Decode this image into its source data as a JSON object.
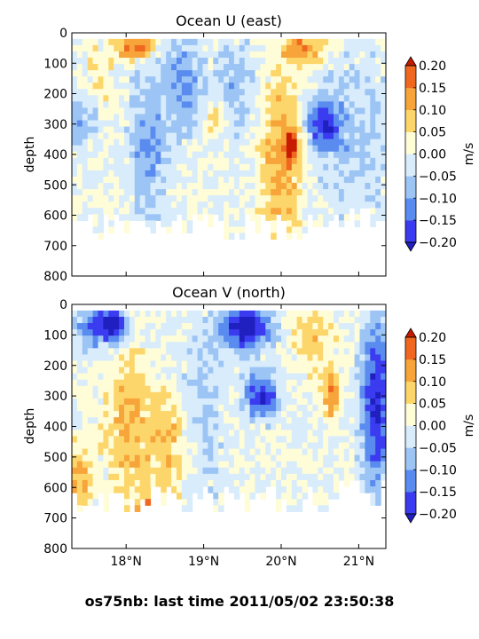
{
  "suptitle": "os75nb: last time 2011/05/02 23:50:38",
  "shared_x": {
    "ticks": [
      18,
      19,
      20,
      21
    ],
    "tick_labels": [
      "18°N",
      "19°N",
      "20°N",
      "21°N"
    ],
    "xlim": [
      17.3,
      21.35
    ]
  },
  "colorbar": {
    "label": "m/s",
    "ticks": [
      0.2,
      0.15,
      0.1,
      0.05,
      0.0,
      -0.05,
      -0.1,
      -0.15,
      -0.2
    ],
    "tick_labels": [
      "0.20",
      "0.15",
      "0.10",
      "0.05",
      "0.00",
      "−0.05",
      "−0.10",
      "−0.15",
      "−0.20"
    ],
    "levels": [
      -0.2,
      -0.15,
      -0.1,
      -0.05,
      0.0,
      0.05,
      0.1,
      0.15,
      0.2
    ],
    "colors": [
      "#3b3bf0",
      "#5a8cf0",
      "#9cc4f4",
      "#d8ecfc",
      "#fffcd8",
      "#fcd66a",
      "#f7a43a",
      "#f06820"
    ],
    "under_color": "#2020c0",
    "over_color": "#c81a00"
  },
  "chart_data": [
    {
      "type": "heatmap",
      "title": "Ocean U (east)",
      "ylabel": "depth",
      "ylim": [
        800,
        0
      ],
      "yticks": [
        0,
        100,
        200,
        300,
        400,
        500,
        600,
        700,
        800
      ],
      "xlim": [
        17.3,
        21.35
      ],
      "value_range": [
        -0.2,
        0.2
      ],
      "approx_features": [
        {
          "x": [
            17.4,
            17.75
          ],
          "depth": [
            50,
            300
          ],
          "value": 0.05
        },
        {
          "x": [
            17.3,
            17.6
          ],
          "depth": [
            200,
            350
          ],
          "value": -0.1
        },
        {
          "x": [
            17.9,
            18.1
          ],
          "depth": [
            30,
            80
          ],
          "value": 0.12
        },
        {
          "x": [
            18.1,
            18.3
          ],
          "depth": [
            30,
            60
          ],
          "value": 0.2
        },
        {
          "x": [
            18.1,
            18.5
          ],
          "depth": [
            100,
            620
          ],
          "value": -0.1
        },
        {
          "x": [
            18.6,
            18.9
          ],
          "depth": [
            50,
            300
          ],
          "value": -0.12
        },
        {
          "x": [
            19.1,
            19.2
          ],
          "depth": [
            250,
            320
          ],
          "value": 0.1
        },
        {
          "x": [
            19.2,
            19.6
          ],
          "depth": [
            50,
            300
          ],
          "value": -0.08
        },
        {
          "x": [
            19.8,
            20.2
          ],
          "depth": [
            150,
            700
          ],
          "value": 0.12
        },
        {
          "x": [
            20.1,
            20.15
          ],
          "depth": [
            350,
            400
          ],
          "value": 0.22
        },
        {
          "x": [
            20.1,
            20.5
          ],
          "depth": [
            30,
            80
          ],
          "value": 0.15
        },
        {
          "x": [
            20.4,
            20.7
          ],
          "depth": [
            250,
            350
          ],
          "value": -0.2
        },
        {
          "x": [
            20.5,
            21.35
          ],
          "depth": [
            100,
            600
          ],
          "value": -0.06
        }
      ]
    },
    {
      "type": "heatmap",
      "title": "Ocean V (north)",
      "ylabel": "depth",
      "ylim": [
        800,
        0
      ],
      "yticks": [
        0,
        100,
        200,
        300,
        400,
        500,
        600,
        700,
        800
      ],
      "xlim": [
        17.3,
        21.35
      ],
      "value_range": [
        -0.2,
        0.2
      ],
      "approx_features": [
        {
          "x": [
            17.4,
            17.8
          ],
          "depth": [
            30,
            120
          ],
          "value": -0.15
        },
        {
          "x": [
            17.75,
            17.95
          ],
          "depth": [
            30,
            100
          ],
          "value": -0.22
        },
        {
          "x": [
            17.3,
            17.5
          ],
          "depth": [
            500,
            650
          ],
          "value": 0.12
        },
        {
          "x": [
            17.8,
            18.2
          ],
          "depth": [
            150,
            620
          ],
          "value": 0.1
        },
        {
          "x": [
            18.2,
            18.3
          ],
          "depth": [
            650,
            720
          ],
          "value": 0.15
        },
        {
          "x": [
            18.3,
            18.75
          ],
          "depth": [
            300,
            620
          ],
          "value": 0.1
        },
        {
          "x": [
            18.75,
            19.2
          ],
          "depth": [
            50,
            620
          ],
          "value": -0.06
        },
        {
          "x": [
            19.3,
            19.8
          ],
          "depth": [
            30,
            120
          ],
          "value": -0.25
        },
        {
          "x": [
            19.6,
            19.9
          ],
          "depth": [
            250,
            350
          ],
          "value": -0.2
        },
        {
          "x": [
            20.2,
            20.6
          ],
          "depth": [
            30,
            200
          ],
          "value": 0.08
        },
        {
          "x": [
            20.6,
            20.7
          ],
          "depth": [
            250,
            350
          ],
          "value": 0.15
        },
        {
          "x": [
            21.1,
            21.35
          ],
          "depth": [
            100,
            550
          ],
          "value": -0.22
        }
      ]
    }
  ]
}
